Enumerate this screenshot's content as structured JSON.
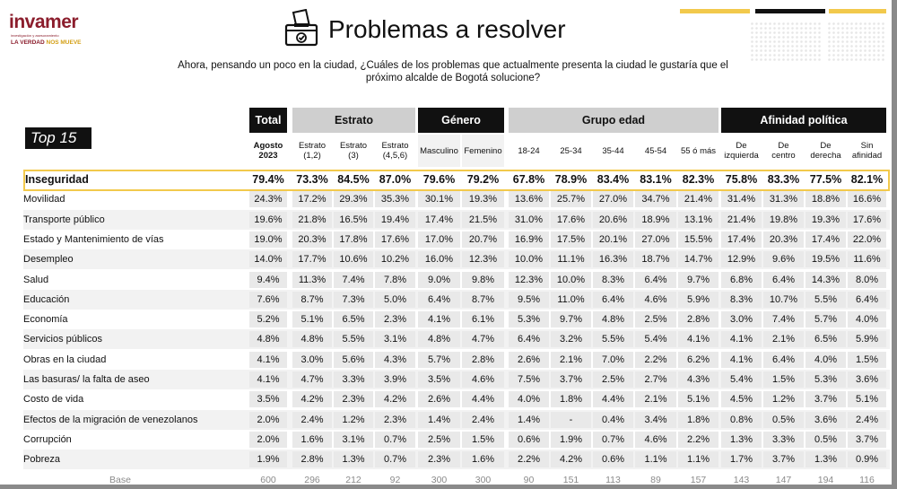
{
  "brand": {
    "name": "invamer",
    "tagline": "investigación y asesoramiento",
    "slogan_a": "LA VERDAD",
    "slogan_b": "NOS MUEVE"
  },
  "title": "Problemas a resolver",
  "question": "Ahora, pensando un poco en la ciudad, ¿Cuáles de los problemas que actualmente presenta la ciudad le gustaría que el próximo alcalde de Bogotá solucione?",
  "top_label": "Top 15",
  "groups": [
    {
      "label": "Total",
      "style": "dark"
    },
    {
      "label": "Estrato",
      "style": "gray"
    },
    {
      "label": "Género",
      "style": "dark"
    },
    {
      "label": "Grupo edad",
      "style": "gray"
    },
    {
      "label": "Afinidad política",
      "style": "dark"
    }
  ],
  "subheaders": [
    "Agosto\n2023",
    "Estrato\n(1,2)",
    "Estrato\n(3)",
    "Estrato\n(4,5,6)",
    "Masculino",
    "Femenino",
    "18-24",
    "25-34",
    "35-44",
    "45-54",
    "55 ó más",
    "De\nizquierda",
    "De\ncentro",
    "De\nderecha",
    "Sin\nafinidad"
  ],
  "rows": [
    {
      "label": "Inseguridad",
      "highlight": true,
      "values": [
        "79.4%",
        "73.3%",
        "84.5%",
        "87.0%",
        "79.6%",
        "79.2%",
        "67.8%",
        "78.9%",
        "83.4%",
        "83.1%",
        "82.3%",
        "75.8%",
        "83.3%",
        "77.5%",
        "82.1%"
      ]
    },
    {
      "label": "Movilidad",
      "values": [
        "24.3%",
        "17.2%",
        "29.3%",
        "35.3%",
        "30.1%",
        "19.3%",
        "13.6%",
        "25.7%",
        "27.0%",
        "34.7%",
        "21.4%",
        "31.4%",
        "31.3%",
        "18.8%",
        "16.6%"
      ]
    },
    {
      "label": "Transporte público",
      "values": [
        "19.6%",
        "21.8%",
        "16.5%",
        "19.4%",
        "17.4%",
        "21.5%",
        "31.0%",
        "17.6%",
        "20.6%",
        "18.9%",
        "13.1%",
        "21.4%",
        "19.8%",
        "19.3%",
        "17.6%"
      ]
    },
    {
      "label": "Estado y Mantenimiento de vías",
      "values": [
        "19.0%",
        "20.3%",
        "17.8%",
        "17.6%",
        "17.0%",
        "20.7%",
        "16.9%",
        "17.5%",
        "20.1%",
        "27.0%",
        "15.5%",
        "17.4%",
        "20.3%",
        "17.4%",
        "22.0%"
      ]
    },
    {
      "label": "Desempleo",
      "values": [
        "14.0%",
        "17.7%",
        "10.6%",
        "10.2%",
        "16.0%",
        "12.3%",
        "10.0%",
        "11.1%",
        "16.3%",
        "18.7%",
        "14.7%",
        "12.9%",
        "9.6%",
        "19.5%",
        "11.6%"
      ]
    },
    {
      "label": "Salud",
      "values": [
        "9.4%",
        "11.3%",
        "7.4%",
        "7.8%",
        "9.0%",
        "9.8%",
        "12.3%",
        "10.0%",
        "8.3%",
        "6.4%",
        "9.7%",
        "6.8%",
        "6.4%",
        "14.3%",
        "8.0%"
      ]
    },
    {
      "label": "Educación",
      "values": [
        "7.6%",
        "8.7%",
        "7.3%",
        "5.0%",
        "6.4%",
        "8.7%",
        "9.5%",
        "11.0%",
        "6.4%",
        "4.6%",
        "5.9%",
        "8.3%",
        "10.7%",
        "5.5%",
        "6.4%"
      ]
    },
    {
      "label": "Economía",
      "values": [
        "5.2%",
        "5.1%",
        "6.5%",
        "2.3%",
        "4.1%",
        "6.1%",
        "5.3%",
        "9.7%",
        "4.8%",
        "2.5%",
        "2.8%",
        "3.0%",
        "7.4%",
        "5.7%",
        "4.0%"
      ]
    },
    {
      "label": "Servicios públicos",
      "values": [
        "4.8%",
        "4.8%",
        "5.5%",
        "3.1%",
        "4.8%",
        "4.7%",
        "6.4%",
        "3.2%",
        "5.5%",
        "5.4%",
        "4.1%",
        "4.1%",
        "2.1%",
        "6.5%",
        "5.9%"
      ]
    },
    {
      "label": "Obras en la ciudad",
      "values": [
        "4.1%",
        "3.0%",
        "5.6%",
        "4.3%",
        "5.7%",
        "2.8%",
        "2.6%",
        "2.1%",
        "7.0%",
        "2.2%",
        "6.2%",
        "4.1%",
        "6.4%",
        "4.0%",
        "1.5%"
      ]
    },
    {
      "label": "Las basuras/ la falta de aseo",
      "values": [
        "4.1%",
        "4.7%",
        "3.3%",
        "3.9%",
        "3.5%",
        "4.6%",
        "7.5%",
        "3.7%",
        "2.5%",
        "2.7%",
        "4.3%",
        "5.4%",
        "1.5%",
        "5.3%",
        "3.6%"
      ]
    },
    {
      "label": "Costo de vida",
      "values": [
        "3.5%",
        "4.2%",
        "2.3%",
        "4.2%",
        "2.6%",
        "4.4%",
        "4.0%",
        "1.8%",
        "4.4%",
        "2.1%",
        "5.1%",
        "4.5%",
        "1.2%",
        "3.7%",
        "5.1%"
      ]
    },
    {
      "label": "Efectos de la migración de venezolanos",
      "values": [
        "2.0%",
        "2.4%",
        "1.2%",
        "2.3%",
        "1.4%",
        "2.4%",
        "1.4%",
        "-",
        "0.4%",
        "3.4%",
        "1.8%",
        "0.8%",
        "0.5%",
        "3.6%",
        "2.4%"
      ]
    },
    {
      "label": "Corrupción",
      "values": [
        "2.0%",
        "1.6%",
        "3.1%",
        "0.7%",
        "2.5%",
        "1.5%",
        "0.6%",
        "1.9%",
        "0.7%",
        "4.6%",
        "2.2%",
        "1.3%",
        "3.3%",
        "0.5%",
        "3.7%"
      ]
    },
    {
      "label": "Pobreza",
      "values": [
        "1.9%",
        "2.8%",
        "1.3%",
        "0.7%",
        "2.3%",
        "1.6%",
        "2.2%",
        "4.2%",
        "0.6%",
        "1.1%",
        "1.1%",
        "1.7%",
        "3.7%",
        "1.3%",
        "0.9%"
      ]
    }
  ],
  "base": {
    "label": "Base",
    "values": [
      "600",
      "296",
      "212",
      "92",
      "300",
      "300",
      "90",
      "151",
      "113",
      "89",
      "157",
      "143",
      "147",
      "194",
      "116"
    ]
  },
  "colors": {
    "highlight_border": "#f2c94c",
    "dark_header": "#111111",
    "gray_header": "#cfcfcf",
    "cell_bg": "#e9e9e9",
    "stripe": "#f2f2f2",
    "brand": "#8b1d2c",
    "accent_gold": "#d4a017"
  }
}
